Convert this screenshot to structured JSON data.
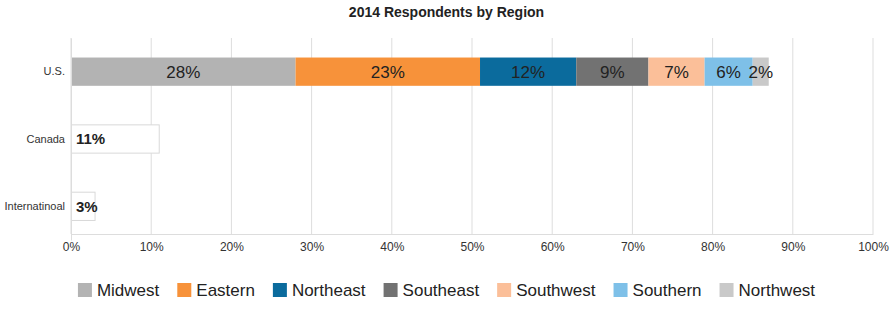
{
  "chart_data": {
    "type": "bar",
    "title": "2014 Respondents by Region",
    "orientation": "horizontal",
    "stacked": true,
    "data_labels": true,
    "grid": true,
    "legend": "bottom",
    "categories": [
      "U.S.",
      "Canada",
      "Internatinoal"
    ],
    "series": [
      {
        "name": "Midwest",
        "color": "#b3b3b3",
        "values": [
          28,
          null,
          null
        ],
        "value_labels": [
          "28%",
          null,
          null
        ]
      },
      {
        "name": "Eastern",
        "color": "#f7923a",
        "values": [
          23,
          null,
          null
        ],
        "value_labels": [
          "23%",
          null,
          null
        ]
      },
      {
        "name": "Northeast",
        "color": "#0b6b9d",
        "values": [
          12,
          null,
          null
        ],
        "value_labels": [
          "12%",
          null,
          null
        ]
      },
      {
        "name": "Southeast",
        "color": "#727272",
        "values": [
          9,
          null,
          null
        ],
        "value_labels": [
          "9%",
          null,
          null
        ]
      },
      {
        "name": "Southwest",
        "color": "#fbbf99",
        "values": [
          7,
          null,
          null
        ],
        "value_labels": [
          "7%",
          null,
          null
        ]
      },
      {
        "name": "Southern",
        "color": "#7ec0e8",
        "values": [
          6,
          null,
          null
        ],
        "value_labels": [
          "6%",
          null,
          null
        ]
      },
      {
        "name": "Northwest",
        "color": "#c9c9c9",
        "values": [
          2,
          null,
          null
        ],
        "value_labels": [
          "2%",
          null,
          null
        ]
      },
      {
        "color": "#ffffff",
        "values": [
          null,
          11,
          3
        ],
        "value_labels": [
          null,
          "11%",
          "3%"
        ]
      }
    ],
    "xlim": [
      0,
      100
    ],
    "xticks": [
      {
        "value": 0,
        "label": "0%"
      },
      {
        "value": 10,
        "label": "10%"
      },
      {
        "value": 20,
        "label": "20%"
      },
      {
        "value": 30,
        "label": "30%"
      },
      {
        "value": 40,
        "label": "40%"
      },
      {
        "value": 50,
        "label": "50%"
      },
      {
        "value": 60,
        "label": "60%"
      },
      {
        "value": 70,
        "label": "70%"
      },
      {
        "value": 80,
        "label": "80%"
      },
      {
        "value": 90,
        "label": "90%"
      },
      {
        "value": 100,
        "label": "100%"
      }
    ]
  }
}
